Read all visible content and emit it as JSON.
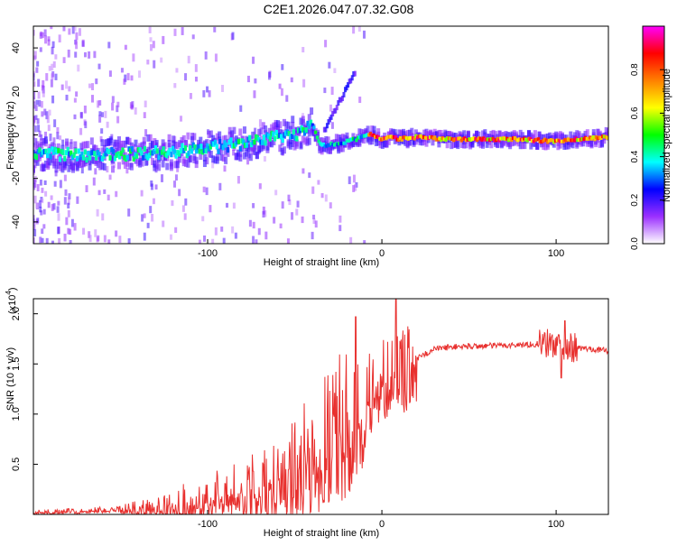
{
  "figure": {
    "title": "C2E1.2026.047.07.32.G08"
  },
  "chart_data": [
    {
      "type": "heatmap",
      "name": "spectrogram",
      "xlabel": "Height of straight line (km)",
      "ylabel": "Frequency (Hz)",
      "xlim": [
        -200,
        130
      ],
      "ylim": [
        -50,
        50
      ],
      "xticks": [
        -100,
        0,
        100
      ],
      "yticks": [
        -40,
        -20,
        0,
        20,
        40
      ],
      "ridge": {
        "x": [
          -200,
          -160,
          -120,
          -80,
          -60,
          -45,
          -40,
          -35,
          -25,
          -15,
          -10,
          -5,
          0,
          5,
          10,
          20,
          40,
          60,
          80,
          100,
          130
        ],
        "freq": [
          -9,
          -9,
          -8,
          -4,
          -1,
          1,
          5,
          -5,
          -4,
          -2,
          0,
          0,
          -2,
          -1,
          -2,
          -1,
          -2,
          -2,
          -2,
          -3,
          -1
        ]
      },
      "colorbar": {
        "label": "Normalized spectral amplitude",
        "range": [
          0,
          1
        ],
        "ticks": [
          "0.0",
          "0.2",
          "0.4",
          "0.6",
          "0.8"
        ],
        "colors": [
          "#ffffff",
          "#9b30ff",
          "#0000ff",
          "#00ffff",
          "#00ff00",
          "#ffff00",
          "#ff8000",
          "#ff0000",
          "#ff00ff"
        ]
      }
    },
    {
      "type": "line",
      "name": "snr",
      "xlabel": "Height of straight line (km)",
      "ylabel": "SNR (10 * v/v)",
      "scale_label": "(x10",
      "scale_exp": "4",
      "scale_close": ")",
      "xlim": [
        -200,
        130
      ],
      "ylim": [
        0,
        2.15
      ],
      "xticks": [
        -100,
        0,
        100
      ],
      "yticks": [
        "0.5",
        "1.0",
        "1.5",
        "2.0"
      ],
      "color": "#e8302e",
      "envelope": {
        "x": [
          -200,
          -150,
          -120,
          -100,
          -80,
          -60,
          -40,
          -30,
          -20,
          -15,
          -10,
          -5,
          0,
          10,
          20,
          25,
          30,
          40,
          60,
          80,
          90,
          100,
          105,
          110,
          120,
          130
        ],
        "y": [
          0.02,
          0.05,
          0.1,
          0.18,
          0.25,
          0.4,
          0.6,
          0.75,
          0.95,
          1.0,
          1.1,
          1.25,
          1.35,
          1.4,
          1.55,
          1.6,
          1.65,
          1.67,
          1.68,
          1.69,
          1.7,
          1.7,
          1.68,
          1.66,
          1.65,
          1.63
        ]
      },
      "spikes": [
        {
          "x": -15,
          "y": 1.97
        },
        {
          "x": 8,
          "y": 2.15
        },
        {
          "x": 105,
          "y": 1.93
        },
        {
          "x": 103,
          "y": 1.36
        }
      ]
    }
  ]
}
